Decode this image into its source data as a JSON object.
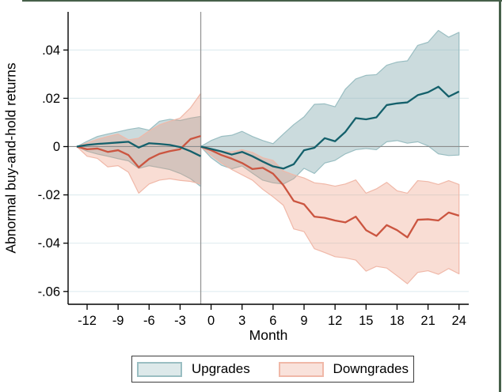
{
  "figure": {
    "title": "",
    "window_border_color": "#46604a"
  },
  "chart_data": {
    "type": "line",
    "title": "",
    "xlabel": "Month",
    "ylabel": "Abnormal buy-and-hold returns",
    "legend": [
      "Upgrades",
      "Downgrades"
    ],
    "legend_position": "bottom",
    "grid": true,
    "xlim": [
      -13.84,
      24.94
    ],
    "ylim": [
      -0.0653,
      0.0558
    ],
    "x_tick_values": [
      -12,
      -9,
      -6,
      -3,
      0,
      3,
      6,
      9,
      12,
      15,
      18,
      21,
      24
    ],
    "x_tick_labels": [
      "-12",
      "-9",
      "-6",
      "-3",
      "0",
      "3",
      "6",
      "9",
      "12",
      "15",
      "18",
      "21",
      "24"
    ],
    "y_tick_values": [
      0.04,
      0.02,
      0,
      -0.02,
      -0.04,
      -0.06
    ],
    "y_tick_labels": [
      ".04",
      ".02",
      "0",
      "-.02",
      "-.04",
      "-.06"
    ],
    "reference_lines": {
      "x": -1,
      "y": 0
    },
    "colors": {
      "upgrades_line": "#14606b",
      "upgrades_band_fill": "rgba(140,175,180,0.45)",
      "upgrades_band_edge": "#9abec2",
      "downgrades_line": "#cb5540",
      "downgrades_band_fill": "rgba(237,148,120,0.32)",
      "downgrades_band_edge": "#f0b8a8",
      "gridline": "#e1edf0",
      "zero_line": "#8b8b8b",
      "event_line": "#979797",
      "axis": "#000000"
    },
    "series": [
      {
        "name": "upgrades-pre",
        "group": "Upgrades",
        "period": "pre-event",
        "months": [
          -13,
          -12,
          -11,
          -10,
          -9,
          -8,
          -7,
          -6,
          -5,
          -4,
          -3,
          -2,
          -1
        ],
        "mean": [
          0,
          0.0007,
          0.0011,
          0.0014,
          0.0017,
          0.002,
          -0.0004,
          0.0014,
          0.0011,
          0.0007,
          -0.0002,
          -0.0019,
          -0.004
        ],
        "ci_upper": [
          0,
          0.0022,
          0.0042,
          0.0052,
          0.0061,
          0.0071,
          0.0078,
          0.0068,
          0.0105,
          0.0113,
          0.0108,
          0.0118,
          0.0125
        ],
        "ci_lower": [
          0,
          -0.0019,
          -0.0031,
          -0.004,
          -0.005,
          -0.0059,
          -0.009,
          -0.0079,
          -0.0087,
          -0.0095,
          -0.0111,
          -0.0133,
          -0.0165
        ]
      },
      {
        "name": "upgrades-post",
        "group": "Upgrades",
        "period": "post-event",
        "months": [
          -1,
          0,
          1,
          2,
          3,
          4,
          5,
          6,
          7,
          8,
          9,
          10,
          11,
          12,
          13,
          14,
          15,
          16,
          17,
          18,
          19,
          20,
          21,
          22,
          23,
          24
        ],
        "mean": [
          0,
          -0.001,
          -0.002,
          -0.0033,
          -0.0022,
          -0.004,
          -0.0062,
          -0.0082,
          -0.0091,
          -0.0073,
          -0.0015,
          -0.0005,
          0.0035,
          0.0022,
          0.0061,
          0.0118,
          0.0113,
          0.0121,
          0.0172,
          0.0179,
          0.0183,
          0.0213,
          0.0225,
          0.0248,
          0.0207,
          0.0228
        ],
        "ci_upper": [
          0,
          0.0025,
          0.0042,
          0.0047,
          0.0063,
          0.0042,
          0.0025,
          0.0012,
          0.0052,
          0.0091,
          0.0123,
          0.0175,
          0.0177,
          0.0165,
          0.0238,
          0.028,
          0.0295,
          0.0298,
          0.0337,
          0.035,
          0.0355,
          0.0419,
          0.0432,
          0.0481,
          0.0453,
          0.0473
        ],
        "ci_lower": [
          0,
          -0.0046,
          -0.0077,
          -0.0092,
          -0.008,
          -0.011,
          -0.0139,
          -0.015,
          -0.0155,
          -0.0133,
          -0.009,
          -0.0111,
          -0.0068,
          -0.0057,
          -0.003,
          -0.0013,
          -0.0008,
          -0.0013,
          0.002,
          0.0025,
          0.0014,
          0.002,
          0.0003,
          -0.003,
          -0.0037,
          -0.0035
        ]
      },
      {
        "name": "downgrades-pre",
        "group": "Downgrades",
        "period": "pre-event",
        "months": [
          -13,
          -12,
          -11,
          -10,
          -9,
          -8,
          -7,
          -6,
          -5,
          -4,
          -3,
          -2,
          -1
        ],
        "mean": [
          0,
          -0.0011,
          -0.0008,
          -0.0022,
          -0.0015,
          -0.0035,
          -0.0086,
          -0.0051,
          -0.003,
          -0.0019,
          -0.0011,
          0.0031,
          0.0044
        ],
        "ci_upper": [
          0,
          0.0015,
          0.003,
          0.0042,
          0.0052,
          0.0028,
          0.0035,
          0.0065,
          0.009,
          0.0105,
          0.0118,
          0.016,
          0.022
        ],
        "ci_lower": [
          0,
          -0.004,
          -0.0049,
          -0.0084,
          -0.0079,
          -0.0106,
          -0.0193,
          -0.0155,
          -0.0139,
          -0.0133,
          -0.014,
          -0.0144,
          -0.0155
        ]
      },
      {
        "name": "downgrades-post",
        "group": "Downgrades",
        "period": "post-event",
        "months": [
          -1,
          0,
          1,
          2,
          3,
          4,
          5,
          6,
          7,
          8,
          9,
          10,
          11,
          12,
          13,
          14,
          15,
          16,
          17,
          18,
          19,
          20,
          21,
          22,
          23,
          24
        ],
        "mean": [
          0,
          -0.0015,
          -0.0035,
          -0.005,
          -0.0068,
          -0.0093,
          -0.0088,
          -0.0112,
          -0.016,
          -0.0225,
          -0.0239,
          -0.029,
          -0.0295,
          -0.0306,
          -0.0314,
          -0.029,
          -0.0346,
          -0.037,
          -0.0325,
          -0.0346,
          -0.0376,
          -0.0303,
          -0.0301,
          -0.0306,
          -0.0273,
          -0.0286
        ],
        "ci_upper": [
          0,
          -0.0008,
          -0.0019,
          -0.0022,
          -0.0013,
          -0.0024,
          -0.0046,
          -0.0057,
          -0.0101,
          -0.0117,
          -0.013,
          -0.015,
          -0.0155,
          -0.0164,
          -0.0155,
          -0.0138,
          -0.0193,
          -0.0175,
          -0.0148,
          -0.0183,
          -0.0193,
          -0.0141,
          -0.0145,
          -0.0157,
          -0.0141,
          -0.0157
        ],
        "ci_lower": [
          0,
          -0.0035,
          -0.0068,
          -0.0095,
          -0.0117,
          -0.0139,
          -0.0177,
          -0.0208,
          -0.0243,
          -0.0341,
          -0.0352,
          -0.0423,
          -0.0439,
          -0.0456,
          -0.0461,
          -0.047,
          -0.0516,
          -0.0496,
          -0.0503,
          -0.0535,
          -0.0568,
          -0.0521,
          -0.0514,
          -0.0529,
          -0.0505,
          -0.0527
        ]
      }
    ]
  }
}
